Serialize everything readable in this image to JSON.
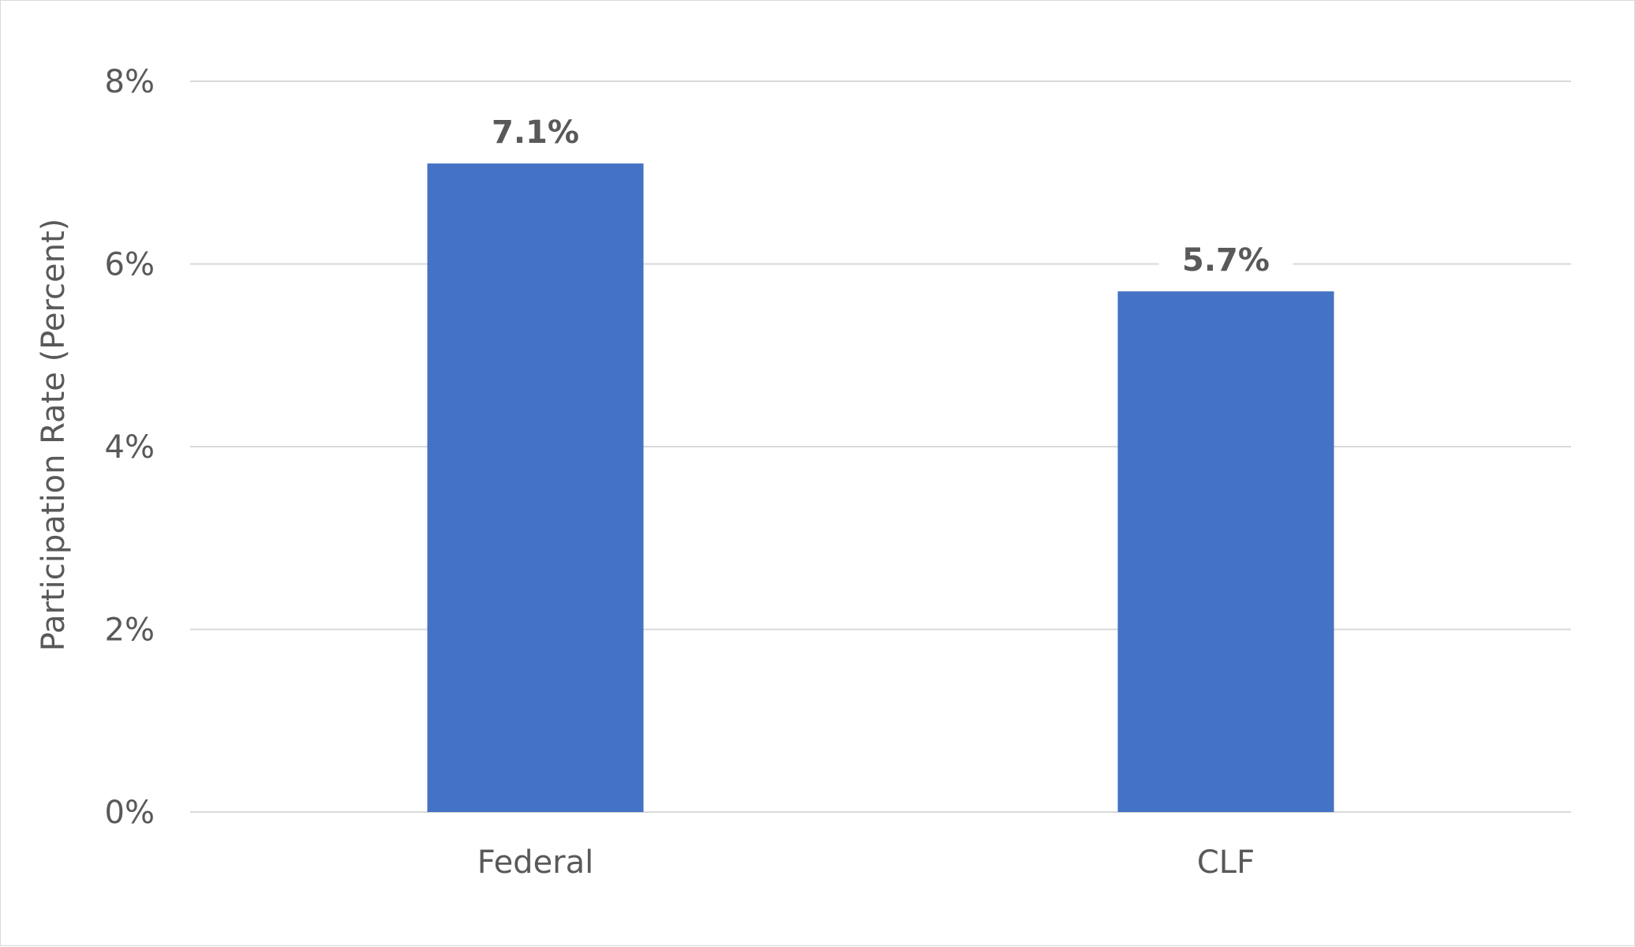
{
  "chart_data": {
    "type": "bar",
    "categories": [
      "Federal",
      "CLF"
    ],
    "values": [
      7.1,
      5.7
    ],
    "data_labels": [
      "7.1%",
      "5.7%"
    ],
    "title": "",
    "xlabel": "",
    "ylabel": "Participation Rate (Percent)",
    "ylim": [
      0,
      8
    ],
    "y_ticks": [
      0,
      2,
      4,
      6,
      8
    ],
    "y_tick_labels": [
      "0%",
      "2%",
      "4%",
      "6%",
      "8%"
    ],
    "grid": true,
    "legend": "none",
    "colors": {
      "bar": "#4472C4",
      "grid": "#d9d9d9",
      "text": "#595959"
    }
  }
}
